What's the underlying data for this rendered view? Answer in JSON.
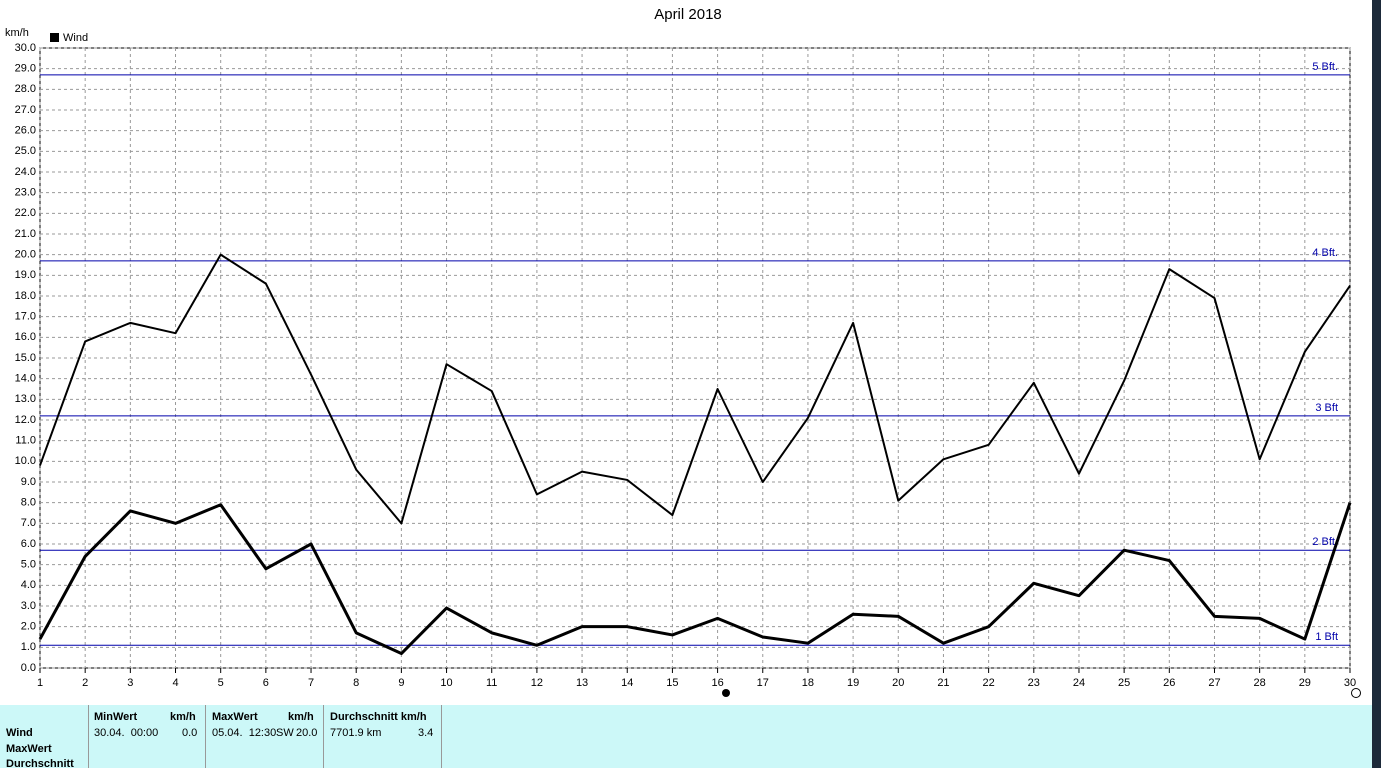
{
  "chart_data": {
    "type": "line",
    "title": "April 2018",
    "y_label": "km/h",
    "legend": "Wind",
    "x": [
      1,
      2,
      3,
      4,
      5,
      6,
      7,
      8,
      9,
      10,
      11,
      12,
      13,
      14,
      15,
      16,
      17,
      18,
      19,
      20,
      21,
      22,
      23,
      24,
      25,
      26,
      27,
      28,
      29,
      30
    ],
    "xlim": [
      1,
      30
    ],
    "xticks": [
      1,
      2,
      3,
      4,
      5,
      6,
      7,
      8,
      9,
      10,
      11,
      12,
      13,
      14,
      15,
      16,
      17,
      18,
      19,
      20,
      21,
      22,
      23,
      24,
      25,
      26,
      27,
      28,
      29,
      30
    ],
    "ylim": [
      0,
      30
    ],
    "yticks": [
      {
        "value": 0,
        "label": "0.0"
      },
      {
        "value": 1,
        "label": "1.0"
      },
      {
        "value": 2,
        "label": "2.0"
      },
      {
        "value": 3,
        "label": "3.0"
      },
      {
        "value": 4,
        "label": "4.0"
      },
      {
        "value": 5,
        "label": "5.0"
      },
      {
        "value": 6,
        "label": "6.0"
      },
      {
        "value": 7,
        "label": "7.0"
      },
      {
        "value": 8,
        "label": "8.0"
      },
      {
        "value": 9,
        "label": "9.0"
      },
      {
        "value": 10,
        "label": "10.0"
      },
      {
        "value": 11,
        "label": "11.0"
      },
      {
        "value": 12,
        "label": "12.0"
      },
      {
        "value": 13,
        "label": "13.0"
      },
      {
        "value": 14,
        "label": "14.0"
      },
      {
        "value": 15,
        "label": "15.0"
      },
      {
        "value": 16,
        "label": "16.0"
      },
      {
        "value": 17,
        "label": "17.0"
      },
      {
        "value": 18,
        "label": "18.0"
      },
      {
        "value": 19,
        "label": "19.0"
      },
      {
        "value": 20,
        "label": "20.0"
      },
      {
        "value": 21,
        "label": "21.0"
      },
      {
        "value": 22,
        "label": "22.0"
      },
      {
        "value": 23,
        "label": "23.0"
      },
      {
        "value": 24,
        "label": "24.0"
      },
      {
        "value": 25,
        "label": "25.0"
      },
      {
        "value": 26,
        "label": "26.0"
      },
      {
        "value": 27,
        "label": "27.0"
      },
      {
        "value": 28,
        "label": "28.0"
      },
      {
        "value": 29,
        "label": "29.0"
      },
      {
        "value": 30,
        "label": "30.0"
      }
    ],
    "grid": true,
    "series": [
      {
        "name": "MaxWert",
        "color": "#000000",
        "width": 2,
        "values": [
          9.8,
          15.8,
          16.7,
          16.2,
          20.0,
          18.6,
          14.2,
          9.6,
          7.0,
          14.7,
          13.4,
          8.4,
          9.5,
          9.1,
          7.4,
          13.5,
          9.0,
          12.1,
          16.7,
          8.1,
          10.1,
          10.8,
          13.8,
          9.4,
          13.9,
          19.3,
          17.9,
          10.1,
          15.3,
          18.5
        ]
      },
      {
        "name": "Durchschnitt",
        "color": "#000000",
        "width": 3,
        "values": [
          1.4,
          5.4,
          7.6,
          7.0,
          7.9,
          4.8,
          6.0,
          1.7,
          0.7,
          2.9,
          1.7,
          1.1,
          2.0,
          2.0,
          1.6,
          2.4,
          1.5,
          1.2,
          2.6,
          2.5,
          1.2,
          2.0,
          4.1,
          3.5,
          5.7,
          5.2,
          2.5,
          2.4,
          1.4,
          8.0
        ]
      }
    ],
    "reference_lines": [
      {
        "label": "1 Bft",
        "value": 1.1,
        "color": "#0000aa"
      },
      {
        "label": "2 Bft.",
        "value": 5.7,
        "color": "#0000aa"
      },
      {
        "label": "3 Bft",
        "value": 12.2,
        "color": "#0000aa"
      },
      {
        "label": "4 Bft.",
        "value": 19.7,
        "color": "#0000aa"
      },
      {
        "label": "5 Bft.",
        "value": 28.7,
        "color": "#0000aa"
      }
    ]
  },
  "table": {
    "row_label": "Wind",
    "headers": [
      [
        "MinWert",
        "km/h"
      ],
      [
        "MaxWert",
        "km/h"
      ],
      [
        "Durchschnitt km/h"
      ]
    ],
    "cells": [
      [
        "30.04.  00:00",
        "0.0"
      ],
      [
        "05.04.  12:30",
        "SW",
        "20.0"
      ],
      [
        "7701.9 km",
        "3.4"
      ]
    ]
  }
}
